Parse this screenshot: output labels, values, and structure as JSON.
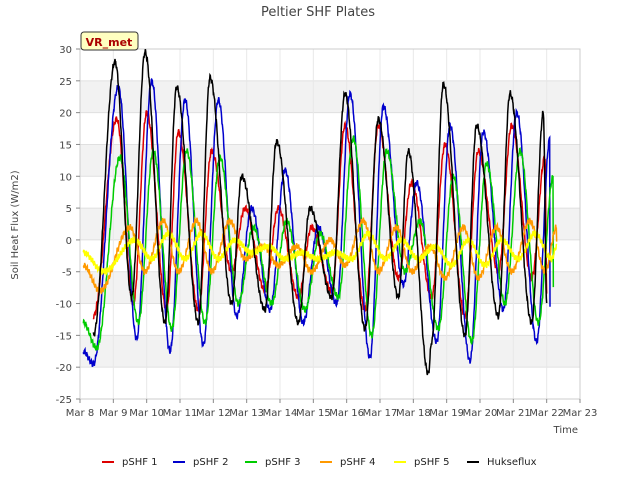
{
  "chart_data": {
    "type": "line",
    "title": "Peltier SHF Plates",
    "xlabel": "Time",
    "ylabel": "Soil Heat Flux (W/m2)",
    "site_label": "VR_met",
    "x_ticks": [
      "Mar 8",
      "Mar 9",
      "Mar 10",
      "Mar 11",
      "Mar 12",
      "Mar 13",
      "Mar 14",
      "Mar 15",
      "Mar 16",
      "Mar 17",
      "Mar 18",
      "Mar 19",
      "Mar 20",
      "Mar 21",
      "Mar 22",
      "Mar 23"
    ],
    "y_ticks": [
      -25,
      -20,
      -15,
      -10,
      -5,
      0,
      5,
      10,
      15,
      20,
      25,
      30
    ],
    "ylim": [
      -25,
      30
    ],
    "x_range_days": [
      "Mar 8",
      "Mar 23"
    ],
    "grid": true,
    "legend_position": "bottom",
    "series": [
      {
        "name": "pSHF 1",
        "color": "#dd0000",
        "peaks": [
          [
            9.1,
            19
          ],
          [
            10.0,
            20
          ],
          [
            10.95,
            17
          ],
          [
            11.95,
            14
          ],
          [
            12.95,
            5
          ],
          [
            13.95,
            5
          ],
          [
            14.95,
            2
          ],
          [
            15.95,
            18
          ],
          [
            16.95,
            18
          ],
          [
            17.95,
            9
          ],
          [
            18.95,
            15
          ],
          [
            19.95,
            14
          ],
          [
            20.95,
            18
          ],
          [
            21.95,
            13
          ]
        ],
        "troughs": [
          [
            8.4,
            -12
          ],
          [
            9.6,
            -10
          ],
          [
            10.6,
            -11
          ],
          [
            11.55,
            -11
          ],
          [
            12.55,
            -5
          ],
          [
            13.55,
            -8
          ],
          [
            14.55,
            -9
          ],
          [
            15.55,
            -8
          ],
          [
            16.55,
            -11
          ],
          [
            17.55,
            -6
          ],
          [
            18.55,
            -9
          ],
          [
            19.55,
            -12
          ],
          [
            20.55,
            -5
          ],
          [
            21.55,
            -6
          ],
          [
            22.0,
            -8
          ]
        ]
      },
      {
        "name": "pSHF 2",
        "color": "#0000cc",
        "peaks": [
          [
            9.15,
            24
          ],
          [
            10.15,
            25
          ],
          [
            11.15,
            22
          ],
          [
            12.15,
            22
          ],
          [
            13.15,
            5
          ],
          [
            14.15,
            11
          ],
          [
            15.15,
            2
          ],
          [
            16.1,
            23
          ],
          [
            17.1,
            21
          ],
          [
            18.1,
            9
          ],
          [
            19.1,
            18
          ],
          [
            20.1,
            17
          ],
          [
            21.1,
            20
          ],
          [
            22.1,
            16
          ]
        ],
        "troughs": [
          [
            8.1,
            -17.5
          ],
          [
            8.4,
            -19.5
          ],
          [
            9.7,
            -15.5
          ],
          [
            10.7,
            -17.5
          ],
          [
            11.7,
            -16.5
          ],
          [
            12.7,
            -12
          ],
          [
            13.7,
            -11
          ],
          [
            14.7,
            -13
          ],
          [
            15.7,
            -10
          ],
          [
            16.7,
            -18.5
          ],
          [
            17.7,
            -7
          ],
          [
            18.7,
            -16
          ],
          [
            19.7,
            -19
          ],
          [
            20.7,
            -11
          ],
          [
            21.7,
            -16
          ],
          [
            22.1,
            -10
          ]
        ]
      },
      {
        "name": "pSHF 3",
        "color": "#00cc00",
        "peaks": [
          [
            9.2,
            13
          ],
          [
            10.2,
            14
          ],
          [
            11.2,
            14
          ],
          [
            12.2,
            13
          ],
          [
            13.2,
            2
          ],
          [
            14.2,
            3
          ],
          [
            15.2,
            1
          ],
          [
            16.2,
            16
          ],
          [
            17.2,
            14
          ],
          [
            18.2,
            3
          ],
          [
            19.2,
            10
          ],
          [
            20.2,
            12
          ],
          [
            21.2,
            14
          ],
          [
            22.2,
            10
          ]
        ],
        "troughs": [
          [
            8.1,
            -13
          ],
          [
            8.5,
            -17
          ],
          [
            9.75,
            -13
          ],
          [
            10.75,
            -14
          ],
          [
            11.75,
            -13
          ],
          [
            12.75,
            -10
          ],
          [
            13.75,
            -10
          ],
          [
            14.75,
            -11
          ],
          [
            15.75,
            -9
          ],
          [
            16.75,
            -15
          ],
          [
            17.75,
            -5
          ],
          [
            18.75,
            -14
          ],
          [
            19.75,
            -16
          ],
          [
            20.75,
            -10
          ],
          [
            21.75,
            -13
          ],
          [
            22.2,
            -7
          ]
        ]
      },
      {
        "name": "pSHF 4",
        "color": "#ff9900",
        "peaks": [
          [
            9.5,
            2
          ],
          [
            10.5,
            3
          ],
          [
            11.5,
            3
          ],
          [
            12.5,
            3
          ],
          [
            13.5,
            -1
          ],
          [
            14.5,
            -1
          ],
          [
            15.5,
            0
          ],
          [
            16.5,
            3
          ],
          [
            17.5,
            2
          ],
          [
            18.5,
            -1
          ],
          [
            19.5,
            2
          ],
          [
            20.5,
            2
          ],
          [
            21.5,
            3
          ],
          [
            22.3,
            2
          ]
        ],
        "troughs": [
          [
            8.1,
            -4
          ],
          [
            8.6,
            -8
          ],
          [
            9.95,
            -5
          ],
          [
            10.95,
            -5
          ],
          [
            11.95,
            -5
          ],
          [
            12.95,
            -3
          ],
          [
            13.95,
            -4
          ],
          [
            14.95,
            -5
          ],
          [
            15.95,
            -4
          ],
          [
            16.95,
            -5
          ],
          [
            17.95,
            -5
          ],
          [
            18.95,
            -6
          ],
          [
            19.95,
            -6
          ],
          [
            20.95,
            -5
          ],
          [
            21.95,
            -5
          ],
          [
            22.3,
            0
          ]
        ]
      },
      {
        "name": "pSHF 5",
        "color": "#ffff00",
        "peaks": [
          [
            9.65,
            0
          ],
          [
            10.65,
            1
          ],
          [
            11.65,
            1
          ],
          [
            12.65,
            0
          ],
          [
            13.65,
            -1
          ],
          [
            14.65,
            -2
          ],
          [
            15.65,
            -2
          ],
          [
            16.65,
            1
          ],
          [
            17.65,
            0
          ],
          [
            18.65,
            -1
          ],
          [
            19.65,
            0
          ],
          [
            20.65,
            0
          ],
          [
            21.65,
            1
          ],
          [
            22.3,
            -1
          ]
        ],
        "troughs": [
          [
            8.1,
            -2
          ],
          [
            8.7,
            -5
          ],
          [
            10.15,
            -3
          ],
          [
            11.15,
            -3
          ],
          [
            12.15,
            -3
          ],
          [
            13.15,
            -2
          ],
          [
            14.15,
            -3
          ],
          [
            15.15,
            -3
          ],
          [
            16.15,
            -3
          ],
          [
            17.15,
            -3
          ],
          [
            18.15,
            -3
          ],
          [
            19.15,
            -4
          ],
          [
            20.15,
            -4
          ],
          [
            21.15,
            -3
          ],
          [
            22.15,
            -3
          ]
        ]
      },
      {
        "name": "Hukseflux",
        "color": "#000000",
        "peaks": [
          [
            9.05,
            28
          ],
          [
            9.95,
            29.5
          ],
          [
            10.9,
            24
          ],
          [
            11.9,
            25.5
          ],
          [
            12.85,
            10
          ],
          [
            13.9,
            15.5
          ],
          [
            14.9,
            5
          ],
          [
            15.95,
            23
          ],
          [
            16.95,
            19
          ],
          [
            17.85,
            14
          ],
          [
            18.9,
            24.5
          ],
          [
            19.9,
            18
          ],
          [
            20.9,
            23
          ],
          [
            21.9,
            20
          ]
        ],
        "troughs": [
          [
            8.4,
            -15
          ],
          [
            9.55,
            -9
          ],
          [
            10.55,
            -13
          ],
          [
            11.55,
            -13
          ],
          [
            12.55,
            -10
          ],
          [
            13.55,
            -11
          ],
          [
            14.55,
            -13
          ],
          [
            15.55,
            -9
          ],
          [
            16.55,
            -14
          ],
          [
            17.55,
            -9
          ],
          [
            18.45,
            -21
          ],
          [
            18.55,
            -16
          ],
          [
            19.55,
            -15
          ],
          [
            20.55,
            -12
          ],
          [
            21.55,
            -13
          ],
          [
            22.0,
            -10
          ]
        ]
      }
    ]
  }
}
